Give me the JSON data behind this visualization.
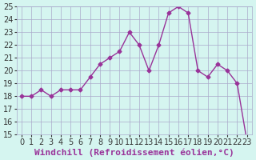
{
  "x": [
    0,
    1,
    2,
    3,
    4,
    5,
    6,
    7,
    8,
    9,
    10,
    11,
    12,
    13,
    14,
    15,
    16,
    17,
    18,
    19,
    20,
    21,
    22,
    23
  ],
  "y": [
    18,
    18,
    18.5,
    18,
    18.5,
    18.5,
    18.5,
    19.5,
    20.5,
    21,
    21.5,
    23,
    22,
    20,
    22,
    24.5,
    25,
    24.5,
    20,
    19.5,
    20.5,
    20,
    19,
    14.5
  ],
  "line_color": "#993399",
  "marker_color": "#993399",
  "bg_color": "#d5f5f0",
  "grid_color": "#aaaacc",
  "xlabel": "Windchill (Refroidissement éolien,°C)",
  "xlabel_color": "#993399",
  "ylim": [
    15,
    25
  ],
  "xlim_min": -0.5,
  "xlim_max": 23.5,
  "yticks": [
    15,
    16,
    17,
    18,
    19,
    20,
    21,
    22,
    23,
    24,
    25
  ],
  "xticks": [
    0,
    1,
    2,
    3,
    4,
    5,
    6,
    7,
    8,
    9,
    10,
    11,
    12,
    13,
    14,
    15,
    16,
    17,
    18,
    19,
    20,
    21,
    22,
    23
  ],
  "tick_color": "#333333",
  "tick_fontsize": 7,
  "xlabel_fontsize": 8
}
